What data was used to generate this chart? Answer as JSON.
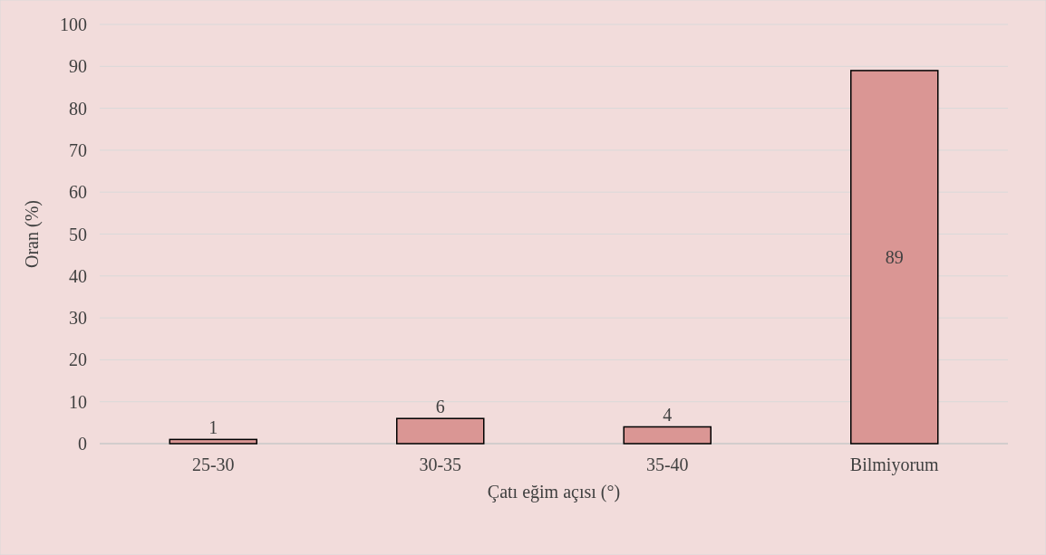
{
  "chart_data": {
    "type": "bar",
    "xlabel": "Çatı eğim açısı (°)",
    "ylabel": "Oran (%)",
    "categories": [
      "25-30",
      "30-35",
      "35-40",
      "Bilmiyorum"
    ],
    "values": [
      1,
      6,
      4,
      89
    ],
    "color": "#da9694",
    "ylim": [
      0,
      100
    ],
    "yticks": [
      0,
      10,
      20,
      30,
      40,
      50,
      60,
      70,
      80,
      90,
      100
    ],
    "grid": "y",
    "data_labels": true
  }
}
